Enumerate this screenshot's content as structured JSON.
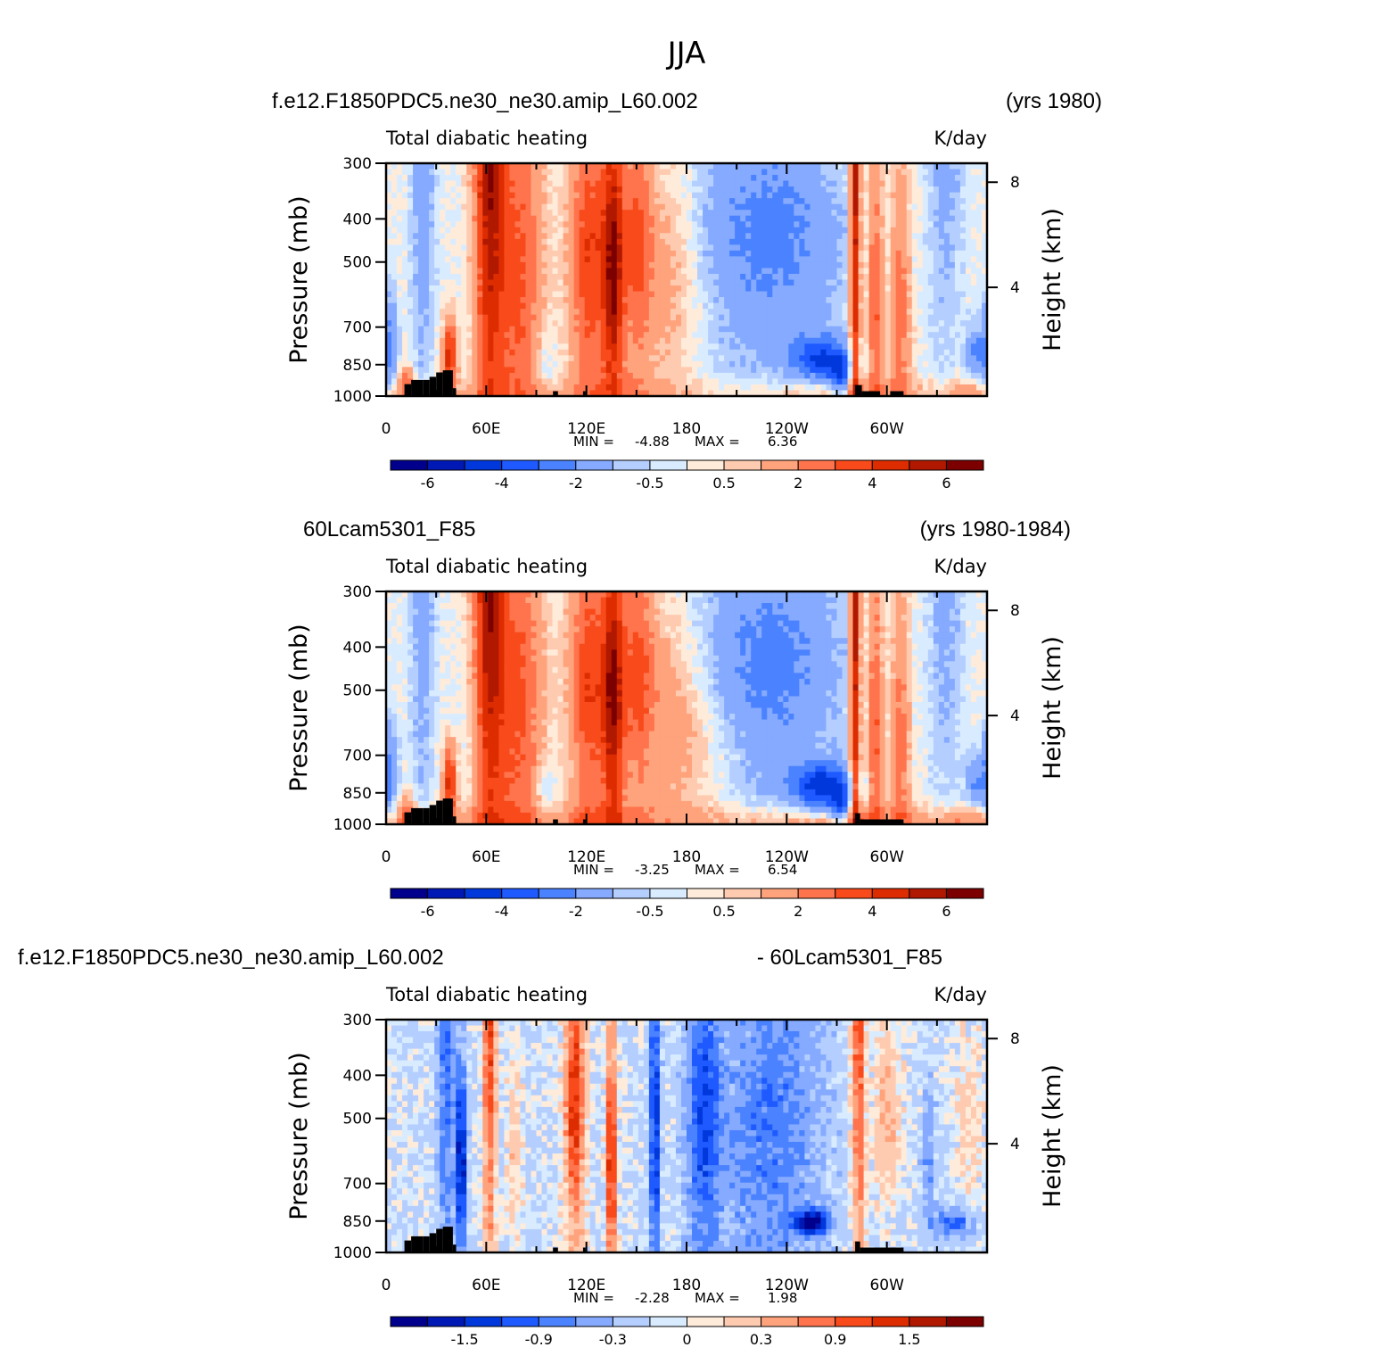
{
  "figure_title": "JJA",
  "colors": {
    "diverging_palette": [
      "#00008c",
      "#0018b4",
      "#0038dc",
      "#1e5aff",
      "#4a82ff",
      "#85aaff",
      "#b4cfff",
      "#d9ecff",
      "#ffebda",
      "#ffcbb0",
      "#ffa37d",
      "#ff744c",
      "#f84a1a",
      "#dc2c00",
      "#b11800",
      "#7d0000"
    ],
    "land_mask": "#000000"
  },
  "chart_data": [
    {
      "type": "heatmap",
      "case_name": "f.e12.F1850PDC5.ne30_ne30.amip_L60.002",
      "years": "(yrs 1980)",
      "left_string": "Total diabatic heating",
      "right_string": "K/day",
      "ylabel": "Pressure (mb)",
      "ylabel_right": "Height (km)",
      "yticks": [
        "300",
        "400",
        "500",
        "700",
        "850",
        "1000"
      ],
      "yticks_right": [
        "8",
        "4"
      ],
      "xticks": [
        "0",
        "60E",
        "120E",
        "180",
        "120W",
        "60W"
      ],
      "min_label": "MIN =",
      "min_value": "-4.88",
      "max_label": "MAX =",
      "max_value": "6.36",
      "colorbar_labels": [
        "-6",
        "-4",
        "-2",
        "-0.5",
        "0.5",
        "2",
        "4",
        "6"
      ],
      "colorbar_levels": [
        -7,
        -6,
        -5,
        -4,
        -3,
        -2,
        -1,
        -0.5,
        0,
        0.5,
        1,
        2,
        3,
        4,
        5,
        6,
        7
      ],
      "value_range": [
        -4.88,
        6.36
      ],
      "xlim": [
        0,
        360
      ],
      "ylim": [
        1000,
        300
      ]
    },
    {
      "type": "heatmap",
      "case_name": "60Lcam5301_F85",
      "years": "(yrs 1980-1984)",
      "left_string": "Total diabatic heating",
      "right_string": "K/day",
      "ylabel": "Pressure (mb)",
      "ylabel_right": "Height (km)",
      "yticks": [
        "300",
        "400",
        "500",
        "700",
        "850",
        "1000"
      ],
      "yticks_right": [
        "8",
        "4"
      ],
      "xticks": [
        "0",
        "60E",
        "120E",
        "180",
        "120W",
        "60W"
      ],
      "min_label": "MIN =",
      "min_value": "-3.25",
      "max_label": "MAX =",
      "max_value": "6.54",
      "colorbar_labels": [
        "-6",
        "-4",
        "-2",
        "-0.5",
        "0.5",
        "2",
        "4",
        "6"
      ],
      "colorbar_levels": [
        -7,
        -6,
        -5,
        -4,
        -3,
        -2,
        -1,
        -0.5,
        0,
        0.5,
        1,
        2,
        3,
        4,
        5,
        6,
        7
      ],
      "value_range": [
        -3.25,
        6.54
      ],
      "xlim": [
        0,
        360
      ],
      "ylim": [
        1000,
        300
      ]
    },
    {
      "type": "heatmap",
      "case_name": "f.e12.F1850PDC5.ne30_ne30.amip_L60.002",
      "years": "- 60Lcam5301_F85",
      "left_string": "Total diabatic heating",
      "right_string": "K/day",
      "ylabel": "Pressure (mb)",
      "ylabel_right": "Height (km)",
      "yticks": [
        "300",
        "400",
        "500",
        "700",
        "850",
        "1000"
      ],
      "yticks_right": [
        "8",
        "4"
      ],
      "xticks": [
        "0",
        "60E",
        "120E",
        "180",
        "120W",
        "60W"
      ],
      "min_label": "MIN =",
      "min_value": "-2.28",
      "max_label": "MAX =",
      "max_value": "1.98",
      "colorbar_labels": [
        "-1.5",
        "-0.9",
        "-0.3",
        "0",
        "0.3",
        "0.9",
        "1.5"
      ],
      "colorbar_levels": [
        -2.1,
        -1.8,
        -1.5,
        -1.2,
        -0.9,
        -0.6,
        -0.3,
        0,
        0.15,
        0.3,
        0.6,
        0.9,
        1.2,
        1.5,
        1.8,
        2.1
      ],
      "value_range": [
        -2.28,
        1.98
      ],
      "xlim": [
        0,
        360
      ],
      "ylim": [
        1000,
        300
      ]
    }
  ]
}
